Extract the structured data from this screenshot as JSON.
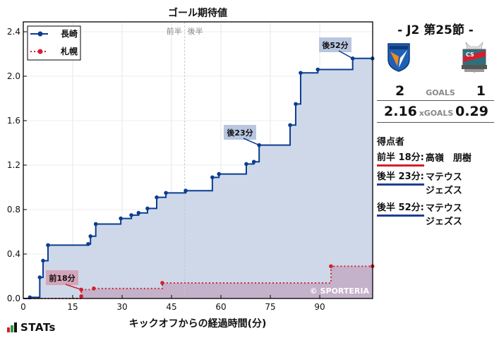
{
  "header": {
    "title": "ゴール期待値"
  },
  "chart_data": {
    "type": "line",
    "title": "ゴール期待値",
    "xlabel": "キックオフからの経過時間(分)",
    "ylabel": "",
    "xlim": [
      0,
      106
    ],
    "ylim": [
      0,
      2.48
    ],
    "xticks": [
      0,
      15,
      30,
      45,
      60,
      75,
      90
    ],
    "yticks": [
      0.0,
      0.4,
      0.8,
      1.2,
      1.6,
      2.0,
      2.4
    ],
    "ytick_labels": [
      "0.0",
      "0.4",
      "0.8",
      "1.2",
      "1.6",
      "2.0",
      "2.4"
    ],
    "grid": true,
    "step": true,
    "halftime_marker": {
      "x": 49,
      "left_label": "前半",
      "right_label": "後半"
    },
    "legend": {
      "position": "upper left",
      "entries": [
        "長崎",
        "札幌"
      ]
    },
    "series": [
      {
        "name": "長崎",
        "color": "#0b3d91",
        "fill": "#cbd6e8",
        "style": "solid",
        "points": [
          [
            0,
            0
          ],
          [
            2,
            0.01
          ],
          [
            5,
            0.19
          ],
          [
            6,
            0.34
          ],
          [
            7.5,
            0.48
          ],
          [
            19.7,
            0.49
          ],
          [
            20.4,
            0.56
          ],
          [
            22,
            0.67
          ],
          [
            29.6,
            0.72
          ],
          [
            32.8,
            0.75
          ],
          [
            35,
            0.77
          ],
          [
            37.7,
            0.81
          ],
          [
            40.5,
            0.91
          ],
          [
            43.3,
            0.95
          ],
          [
            49.3,
            0.97
          ],
          [
            57.4,
            1.09
          ],
          [
            59.4,
            1.12
          ],
          [
            67.7,
            1.21
          ],
          [
            70,
            1.23
          ],
          [
            71.6,
            1.38
          ],
          [
            81,
            1.56
          ],
          [
            82.7,
            1.75
          ],
          [
            84.2,
            2.03
          ],
          [
            89.4,
            2.06
          ],
          [
            100,
            2.16
          ],
          [
            106,
            2.16
          ]
        ]
      },
      {
        "name": "札幌",
        "color": "#d0202f",
        "fill": "#c3adc7",
        "style": "dotted",
        "points": [
          [
            0,
            0
          ],
          [
            17.6,
            0.02
          ],
          [
            17.6,
            0.08
          ],
          [
            21.4,
            0.09
          ],
          [
            42.2,
            0.14
          ],
          [
            93.4,
            0.29
          ],
          [
            106,
            0.29
          ]
        ]
      }
    ],
    "annotations": [
      {
        "text": "前18分",
        "team": "札幌",
        "x": 17.6,
        "y": 0.08
      },
      {
        "text": "後23分",
        "team": "長崎",
        "x": 71.6,
        "y": 1.38
      },
      {
        "text": "後52分",
        "team": "長崎",
        "x": 100,
        "y": 2.16
      }
    ],
    "watermark": "© SPORTERIA"
  },
  "sidebar": {
    "match_title": "- J2 第25節 -",
    "home": {
      "name": "長崎",
      "crest": "v-varen-nagasaki-crest",
      "goals": "2",
      "xgoals": "2.16"
    },
    "away": {
      "name": "札幌",
      "crest": "consadole-sapporo-crest",
      "goals": "1",
      "xgoals": "0.29"
    },
    "goals_label": "GOALS",
    "xgoals_label": "xGOALS",
    "scorers_heading": "得点者",
    "scorers": [
      {
        "time": "前半 18分:",
        "name": "高嶺　朋樹",
        "name2": "",
        "team": "away"
      },
      {
        "time": "後半 23分:",
        "name": "マテウス",
        "name2": "ジェズス",
        "team": "home"
      },
      {
        "time": "後半 52分:",
        "name": "マテウス",
        "name2": "ジェズス",
        "team": "home"
      }
    ]
  },
  "footer": {
    "logo_text": "STATs"
  }
}
